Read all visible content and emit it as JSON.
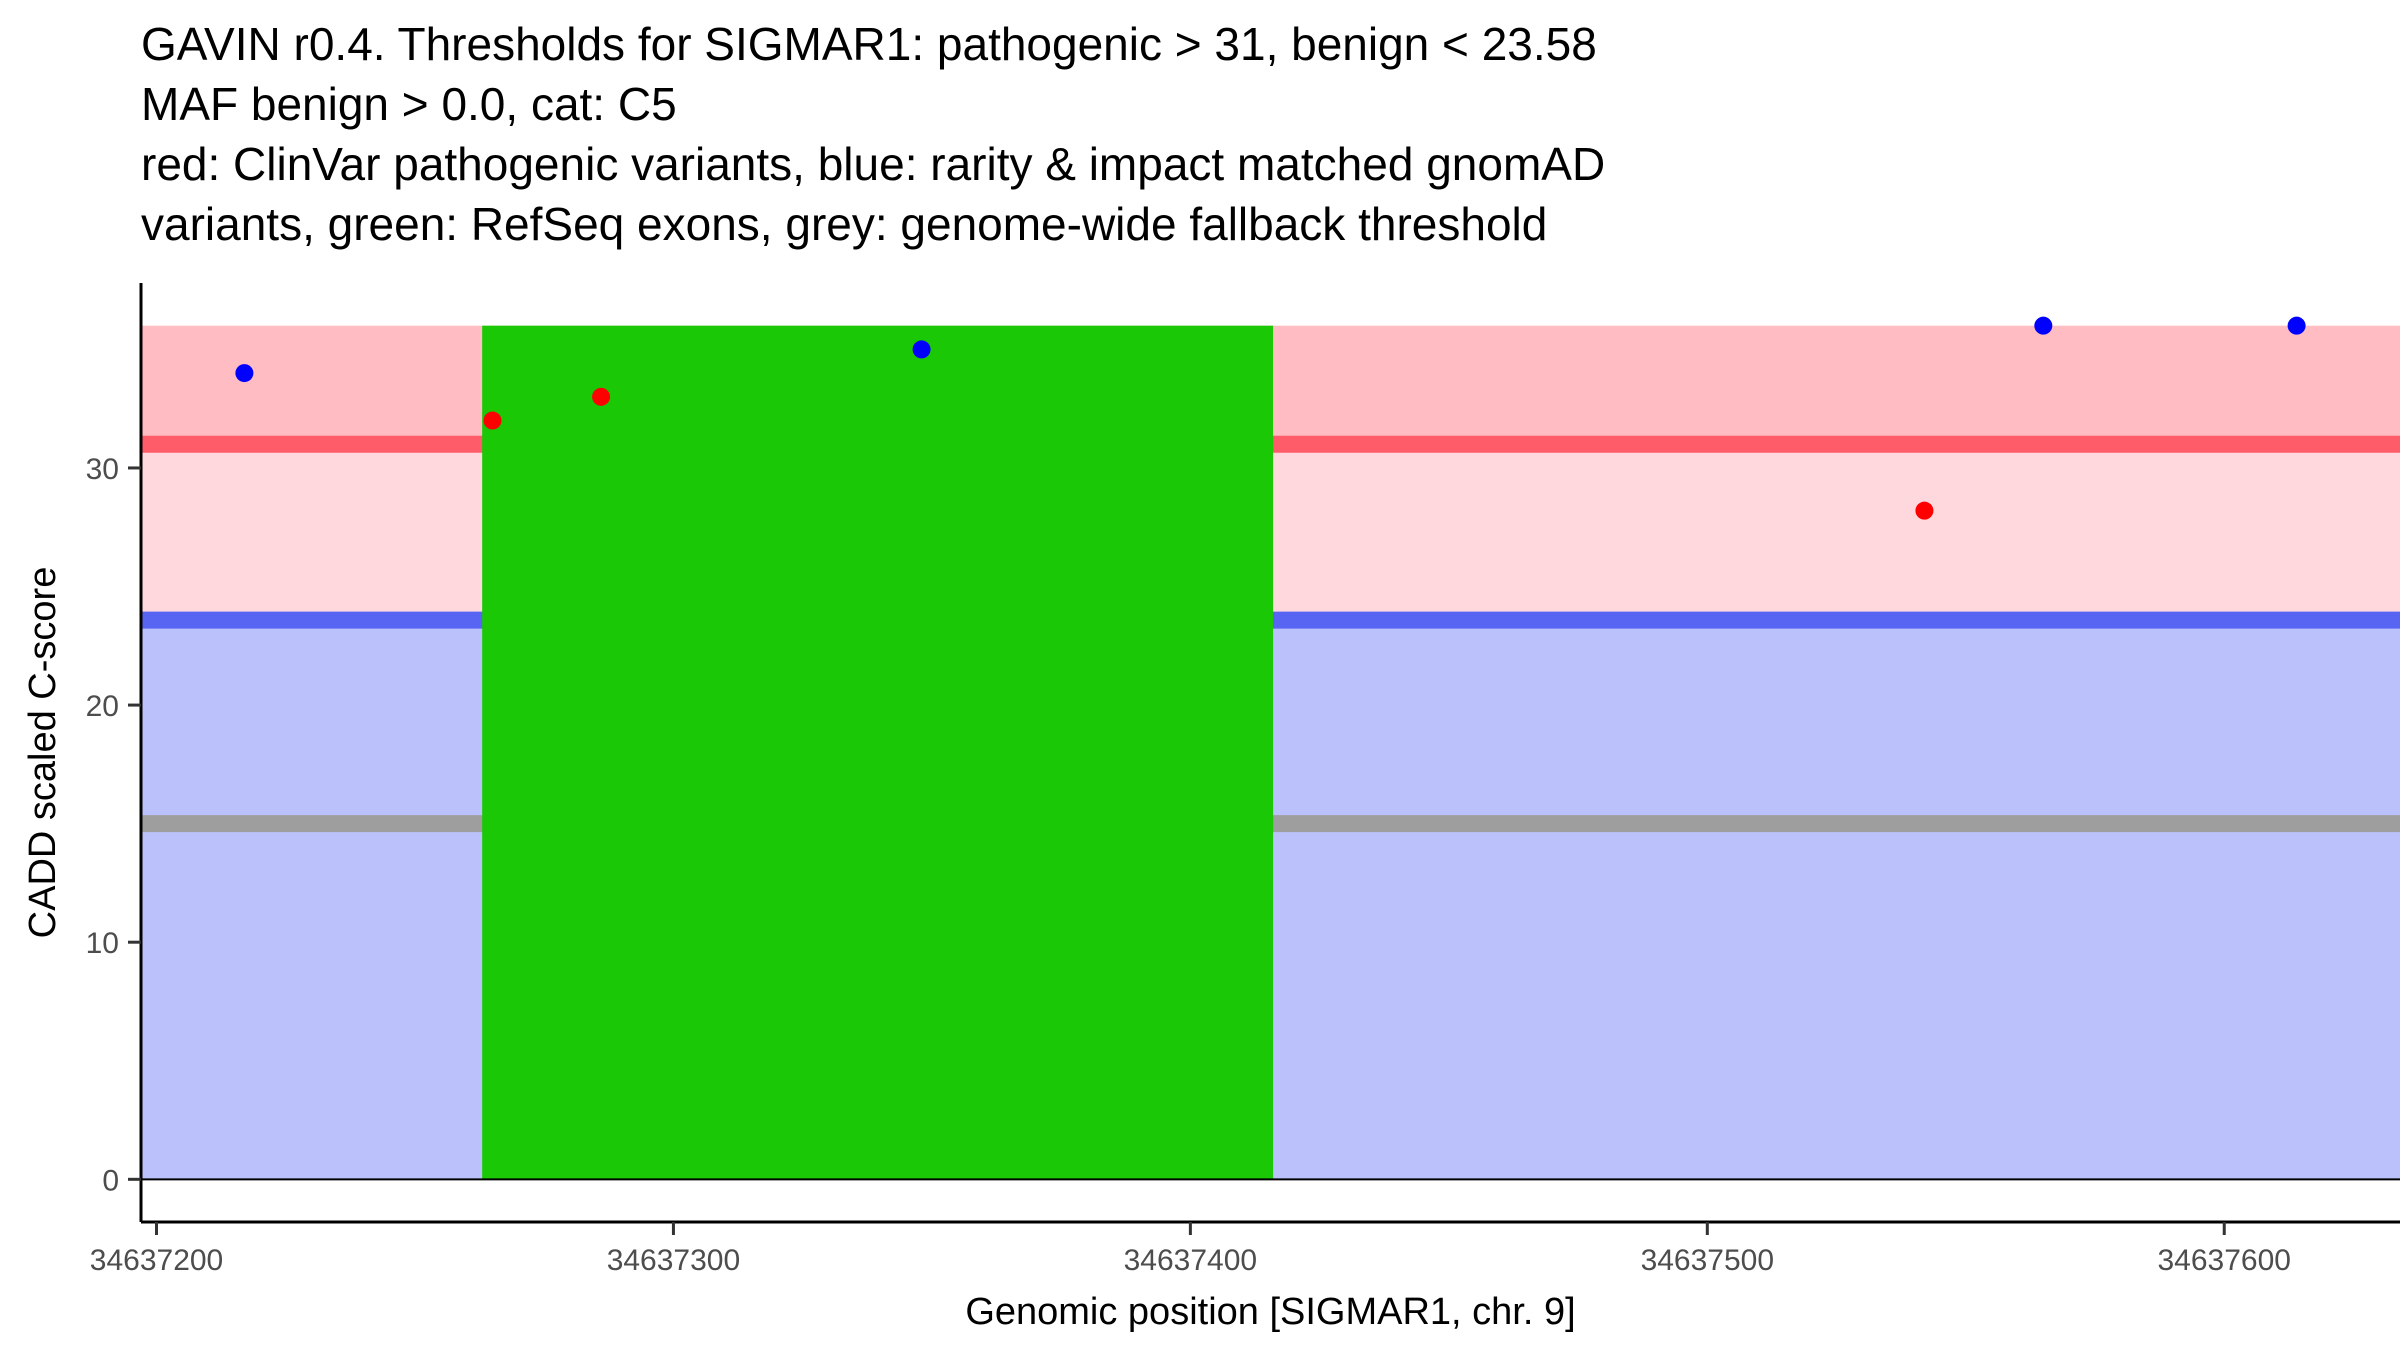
{
  "chart_data": {
    "type": "scatter",
    "title_lines": [
      "GAVIN r0.4. Thresholds for SIGMAR1: pathogenic > 31, benign < 23.58",
      "MAF benign > 0.0, cat: C5",
      "red: ClinVar pathogenic variants, blue: rarity & impact matched gnomAD",
      "variants, green: RefSeq exons, grey: genome-wide fallback threshold"
    ],
    "xlabel": "Genomic position [SIGMAR1, chr. 9]",
    "ylabel": "CADD scaled C-score",
    "xlim": [
      34637197,
      34637634
    ],
    "ylim": [
      -1.8,
      37.8
    ],
    "x_ticks": [
      34637200,
      34637300,
      34637400,
      34637500,
      34637600
    ],
    "y_ticks": [
      0,
      10,
      20,
      30
    ],
    "grid": false,
    "bands": [
      {
        "y0": 0,
        "y1": 23.58,
        "color": "#bbc2fb"
      },
      {
        "y0": 23.58,
        "y1": 31,
        "color": "#ffd8dd"
      },
      {
        "y0": 31,
        "y1": 36,
        "color": "#ffbcc3"
      }
    ],
    "threshold_lines": [
      {
        "y": 31,
        "color": "#ff5c6a"
      },
      {
        "y": 23.58,
        "color": "#5865f3"
      },
      {
        "y": 15,
        "color": "#9e9e9e"
      }
    ],
    "exons": [
      {
        "x0": 34637263,
        "x1": 34637416,
        "y0": 0,
        "y1": 36,
        "color": "#1ac805"
      }
    ],
    "series": [
      {
        "color": "#ff0000",
        "points": [
          {
            "x": 34637265,
            "y": 32
          },
          {
            "x": 34637286,
            "y": 33
          },
          {
            "x": 34637542,
            "y": 28.2
          }
        ]
      },
      {
        "color": "#0000ff",
        "points": [
          {
            "x": 34637217,
            "y": 34
          },
          {
            "x": 34637348,
            "y": 35
          },
          {
            "x": 34637565,
            "y": 36
          },
          {
            "x": 34637614,
            "y": 36
          }
        ]
      }
    ]
  }
}
